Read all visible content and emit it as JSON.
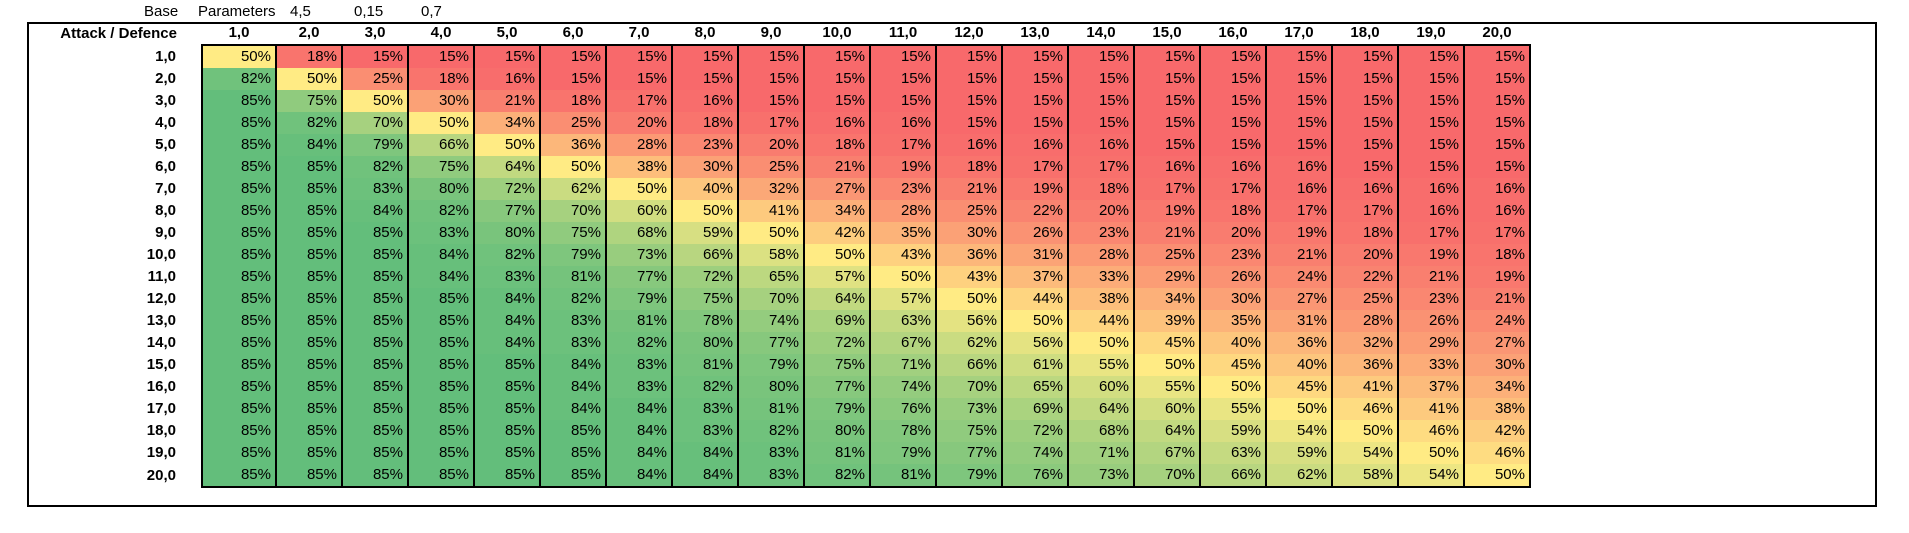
{
  "params": {
    "label": "Base",
    "label2": "Parameters",
    "values": [
      "4,5",
      "0,15",
      "0,7"
    ]
  },
  "table": {
    "corner_label": "Attack / Defence",
    "columns": [
      "1,0",
      "2,0",
      "3,0",
      "4,0",
      "5,0",
      "6,0",
      "7,0",
      "8,0",
      "9,0",
      "10,0",
      "11,0",
      "12,0",
      "13,0",
      "14,0",
      "15,0",
      "16,0",
      "17,0",
      "18,0",
      "19,0",
      "20,0"
    ],
    "rows": [
      {
        "label": "1,0",
        "values": [
          50,
          18,
          15,
          15,
          15,
          15,
          15,
          15,
          15,
          15,
          15,
          15,
          15,
          15,
          15,
          15,
          15,
          15,
          15,
          15
        ]
      },
      {
        "label": "2,0",
        "values": [
          82,
          50,
          25,
          18,
          16,
          15,
          15,
          15,
          15,
          15,
          15,
          15,
          15,
          15,
          15,
          15,
          15,
          15,
          15,
          15
        ]
      },
      {
        "label": "3,0",
        "values": [
          85,
          75,
          50,
          30,
          21,
          18,
          17,
          16,
          15,
          15,
          15,
          15,
          15,
          15,
          15,
          15,
          15,
          15,
          15,
          15
        ]
      },
      {
        "label": "4,0",
        "values": [
          85,
          82,
          70,
          50,
          34,
          25,
          20,
          18,
          17,
          16,
          16,
          15,
          15,
          15,
          15,
          15,
          15,
          15,
          15,
          15
        ]
      },
      {
        "label": "5,0",
        "values": [
          85,
          84,
          79,
          66,
          50,
          36,
          28,
          23,
          20,
          18,
          17,
          16,
          16,
          16,
          15,
          15,
          15,
          15,
          15,
          15
        ]
      },
      {
        "label": "6,0",
        "values": [
          85,
          85,
          82,
          75,
          64,
          50,
          38,
          30,
          25,
          21,
          19,
          18,
          17,
          17,
          16,
          16,
          16,
          15,
          15,
          15
        ]
      },
      {
        "label": "7,0",
        "values": [
          85,
          85,
          83,
          80,
          72,
          62,
          50,
          40,
          32,
          27,
          23,
          21,
          19,
          18,
          17,
          17,
          16,
          16,
          16,
          16
        ]
      },
      {
        "label": "8,0",
        "values": [
          85,
          85,
          84,
          82,
          77,
          70,
          60,
          50,
          41,
          34,
          28,
          25,
          22,
          20,
          19,
          18,
          17,
          17,
          16,
          16
        ]
      },
      {
        "label": "9,0",
        "values": [
          85,
          85,
          85,
          83,
          80,
          75,
          68,
          59,
          50,
          42,
          35,
          30,
          26,
          23,
          21,
          20,
          19,
          18,
          17,
          17
        ]
      },
      {
        "label": "10,0",
        "values": [
          85,
          85,
          85,
          84,
          82,
          79,
          73,
          66,
          58,
          50,
          43,
          36,
          31,
          28,
          25,
          23,
          21,
          20,
          19,
          18
        ]
      },
      {
        "label": "11,0",
        "values": [
          85,
          85,
          85,
          84,
          83,
          81,
          77,
          72,
          65,
          57,
          50,
          43,
          37,
          33,
          29,
          26,
          24,
          22,
          21,
          19
        ]
      },
      {
        "label": "12,0",
        "values": [
          85,
          85,
          85,
          85,
          84,
          82,
          79,
          75,
          70,
          64,
          57,
          50,
          44,
          38,
          34,
          30,
          27,
          25,
          23,
          21
        ]
      },
      {
        "label": "13,0",
        "values": [
          85,
          85,
          85,
          85,
          84,
          83,
          81,
          78,
          74,
          69,
          63,
          56,
          50,
          44,
          39,
          35,
          31,
          28,
          26,
          24
        ]
      },
      {
        "label": "14,0",
        "values": [
          85,
          85,
          85,
          85,
          84,
          83,
          82,
          80,
          77,
          72,
          67,
          62,
          56,
          50,
          45,
          40,
          36,
          32,
          29,
          27
        ]
      },
      {
        "label": "15,0",
        "values": [
          85,
          85,
          85,
          85,
          85,
          84,
          83,
          81,
          79,
          75,
          71,
          66,
          61,
          55,
          50,
          45,
          40,
          36,
          33,
          30
        ]
      },
      {
        "label": "16,0",
        "values": [
          85,
          85,
          85,
          85,
          85,
          84,
          83,
          82,
          80,
          77,
          74,
          70,
          65,
          60,
          55,
          50,
          45,
          41,
          37,
          34
        ]
      },
      {
        "label": "17,0",
        "values": [
          85,
          85,
          85,
          85,
          85,
          84,
          84,
          83,
          81,
          79,
          76,
          73,
          69,
          64,
          60,
          55,
          50,
          46,
          41,
          38
        ]
      },
      {
        "label": "18,0",
        "values": [
          85,
          85,
          85,
          85,
          85,
          85,
          84,
          83,
          82,
          80,
          78,
          75,
          72,
          68,
          64,
          59,
          54,
          50,
          46,
          42
        ]
      },
      {
        "label": "19,0",
        "values": [
          85,
          85,
          85,
          85,
          85,
          85,
          84,
          84,
          83,
          81,
          79,
          77,
          74,
          71,
          67,
          63,
          59,
          54,
          50,
          46
        ]
      },
      {
        "label": "20,0",
        "values": [
          85,
          85,
          85,
          85,
          85,
          85,
          84,
          84,
          83,
          82,
          81,
          79,
          76,
          73,
          70,
          66,
          62,
          58,
          54,
          50
        ]
      }
    ],
    "value_suffix": "%"
  },
  "colors": {
    "low": "#f8696b",
    "mid": "#ffeb84",
    "high": "#63be7b"
  }
}
